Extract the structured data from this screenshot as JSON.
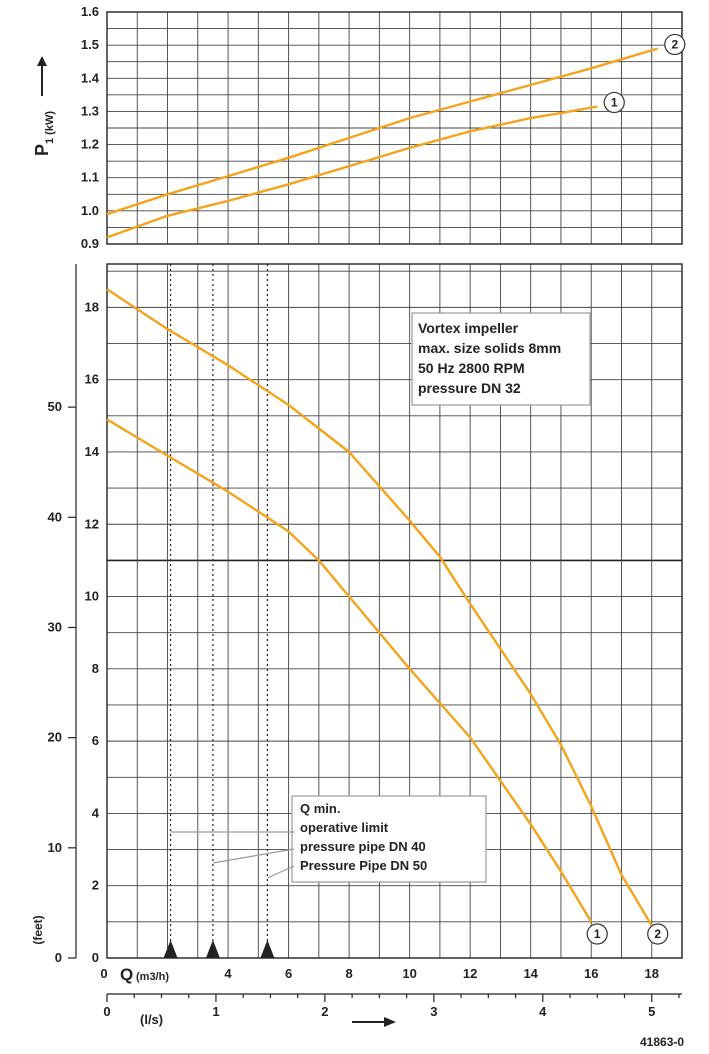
{
  "chart_data": [
    {
      "type": "line",
      "ylabel_main": "P",
      "ylabel_sub": "1 (kW)",
      "y_ticks": [
        "0.9",
        "1.0",
        "1.1",
        "1.2",
        "1.3",
        "1.4",
        "1.5",
        "1.6"
      ],
      "ylim": [
        0.9,
        1.6
      ],
      "xlim": [
        0,
        19
      ],
      "grid": true,
      "series": [
        {
          "marker": "1",
          "points": [
            [
              0,
              0.92
            ],
            [
              2,
              0.985
            ],
            [
              4,
              1.03
            ],
            [
              6,
              1.08
            ],
            [
              8,
              1.135
            ],
            [
              10,
              1.19
            ],
            [
              12,
              1.24
            ],
            [
              14,
              1.28
            ],
            [
              15,
              1.295
            ],
            [
              16.2,
              1.315
            ]
          ]
        },
        {
          "marker": "2",
          "points": [
            [
              0,
              0.99
            ],
            [
              2,
              1.05
            ],
            [
              4,
              1.105
            ],
            [
              6,
              1.16
            ],
            [
              8,
              1.22
            ],
            [
              10,
              1.28
            ],
            [
              12,
              1.33
            ],
            [
              14,
              1.38
            ],
            [
              16,
              1.43
            ],
            [
              18.2,
              1.49
            ]
          ]
        }
      ]
    },
    {
      "type": "line",
      "y_ticks_m": [
        "0",
        "2",
        "4",
        "6",
        "8",
        "10",
        "12",
        "14",
        "16",
        "18"
      ],
      "y_ticks_feet": [
        "0",
        "10",
        "20",
        "30",
        "40",
        "50"
      ],
      "ylabel_feet": "(feet)",
      "ylim": [
        0,
        19.2
      ],
      "x_ticks_m3h": [
        "0",
        "4",
        "6",
        "8",
        "10",
        "12",
        "14",
        "16",
        "18"
      ],
      "xlabel_m3h_main": "Q",
      "xlabel_m3h_sub": "(m3/h)",
      "x_ticks_ls": [
        "0",
        "1",
        "2",
        "3",
        "4",
        "5"
      ],
      "xlabel_ls": "(l/s)",
      "xlim": [
        0,
        19
      ],
      "grid": true,
      "series": [
        {
          "marker": "1",
          "points": [
            [
              0,
              14.9
            ],
            [
              2,
              13.9
            ],
            [
              4,
              12.9
            ],
            [
              6,
              11.8
            ],
            [
              7,
              11.0
            ],
            [
              8,
              10.0
            ],
            [
              10,
              8.0
            ],
            [
              12,
              6.1
            ],
            [
              14,
              3.7
            ],
            [
              15,
              2.4
            ],
            [
              16,
              1.0
            ]
          ]
        },
        {
          "marker": "2",
          "points": [
            [
              0,
              18.5
            ],
            [
              2,
              17.4
            ],
            [
              4,
              16.4
            ],
            [
              6,
              15.3
            ],
            [
              8,
              14.0
            ],
            [
              10,
              12.1
            ],
            [
              11,
              11.1
            ],
            [
              12,
              9.8
            ],
            [
              14,
              7.3
            ],
            [
              15,
              5.9
            ],
            [
              16,
              4.2
            ],
            [
              17,
              2.3
            ],
            [
              18,
              0.9
            ]
          ]
        }
      ],
      "qmin_lines_x": [
        2.1,
        3.5,
        5.3
      ],
      "info_box": [
        "Vortex impeller",
        "max. size solids 8mm",
        "50 Hz 2800 RPM",
        "pressure DN 32"
      ],
      "legend_box": [
        "Q min.",
        "operative limit",
        "pressure pipe DN 40",
        "Pressure Pipe DN 50"
      ]
    }
  ],
  "footer_code": "41863-0"
}
